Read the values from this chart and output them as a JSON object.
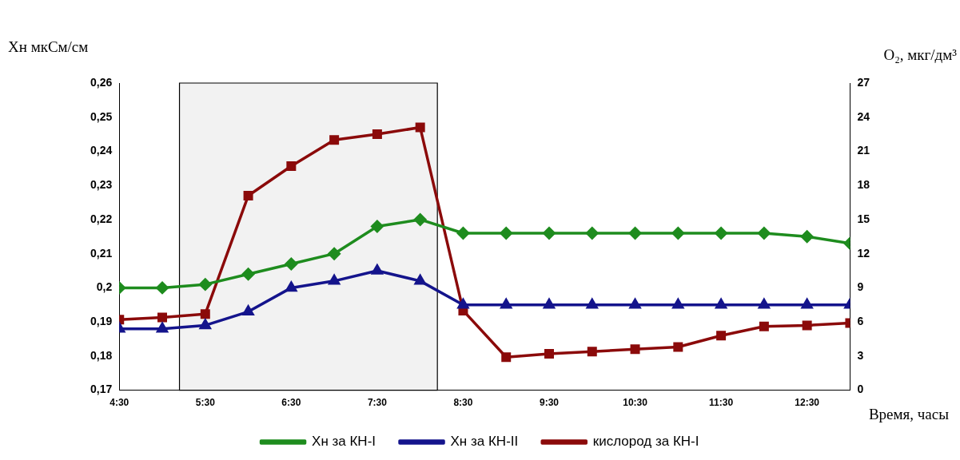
{
  "chart_data": {
    "type": "line",
    "ylabel": "Хн мкСм/см",
    "y2label": "O₂, мкг/дм³",
    "xlabel": "Время, часы",
    "x": [
      4.5,
      5,
      5.5,
      6,
      6.5,
      7,
      7.5,
      8,
      8.5,
      9,
      9.5,
      10,
      10.5,
      11,
      11.5,
      12,
      12.5,
      13
    ],
    "xlim": [
      4.5,
      13
    ],
    "xticks": [
      {
        "value": 4.5,
        "label": "4:30"
      },
      {
        "value": 5.5,
        "label": "5:30"
      },
      {
        "value": 6.5,
        "label": "6:30"
      },
      {
        "value": 7.5,
        "label": "7:30"
      },
      {
        "value": 8.5,
        "label": "8:30"
      },
      {
        "value": 9.5,
        "label": "9:30"
      },
      {
        "value": 10.5,
        "label": "10:30"
      },
      {
        "value": 11.5,
        "label": "11:30"
      },
      {
        "value": 12.5,
        "label": "12:30"
      }
    ],
    "ylim": [
      0.17,
      0.26
    ],
    "yticks": [
      {
        "value": 0.17,
        "label": "0,17"
      },
      {
        "value": 0.18,
        "label": "0,18"
      },
      {
        "value": 0.19,
        "label": "0,19"
      },
      {
        "value": 0.2,
        "label": "0,2"
      },
      {
        "value": 0.21,
        "label": "0,21"
      },
      {
        "value": 0.22,
        "label": "0,22"
      },
      {
        "value": 0.23,
        "label": "0,23"
      },
      {
        "value": 0.24,
        "label": "0,24"
      },
      {
        "value": 0.25,
        "label": "0,25"
      },
      {
        "value": 0.26,
        "label": "0,26"
      }
    ],
    "y2lim": [
      0,
      27
    ],
    "y2ticks": [
      0,
      3,
      6,
      9,
      12,
      15,
      18,
      21,
      24,
      27
    ],
    "series": [
      {
        "name": "Хн за КН-I",
        "color": "#1e8c1e",
        "marker": "diamond",
        "values": [
          0.2,
          0.2,
          0.201,
          0.204,
          0.207,
          0.21,
          0.218,
          0.22,
          0.216,
          0.216,
          0.216,
          0.216,
          0.216,
          0.216,
          0.216,
          0.216,
          0.215,
          0.213
        ]
      },
      {
        "name": "Хн за КН-II",
        "color": "#14148c",
        "marker": "triangle",
        "values": [
          0.188,
          0.188,
          0.189,
          0.193,
          0.2,
          0.202,
          0.205,
          0.202,
          0.195,
          0.195,
          0.195,
          0.195,
          0.195,
          0.195,
          0.195,
          0.195,
          0.195,
          0.195
        ]
      },
      {
        "name": "кислород за КН-I",
        "color": "#8b0a0a",
        "marker": "square",
        "axis": "y2",
        "values": [
          6.2,
          6.4,
          6.7,
          17.1,
          19.7,
          22.0,
          22.5,
          23.1,
          7.0,
          2.9,
          3.2,
          3.4,
          3.6,
          3.8,
          4.8,
          5.6,
          5.7,
          5.9
        ]
      }
    ],
    "bands": [
      {
        "axis": "x",
        "from": 5.2,
        "to": 8.2,
        "color": "#f2f2f2"
      }
    ],
    "grid": false,
    "legend": "bottom",
    "line_style": "solid"
  }
}
